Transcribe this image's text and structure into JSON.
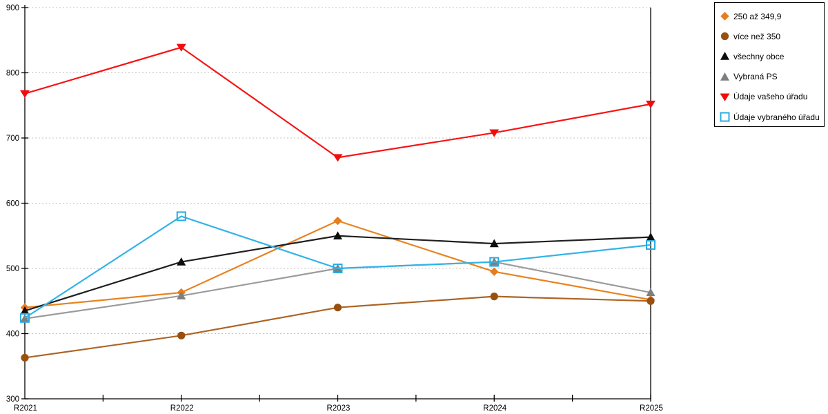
{
  "chart_data": {
    "type": "line",
    "categories": [
      "R2021",
      "R2022",
      "R2023",
      "R2024",
      "R2025"
    ],
    "series": [
      {
        "name": "250 až 349,9",
        "marker": "diamond",
        "color": "#E87D1E",
        "line_color": "#E8821F",
        "values": [
          440,
          463,
          573,
          495,
          452
        ]
      },
      {
        "name": "více než 350",
        "marker": "circle",
        "color": "#99500F",
        "line_color": "#AC6423",
        "values": [
          363,
          397,
          440,
          457,
          450
        ]
      },
      {
        "name": "všechny obce",
        "marker": "triangle-up",
        "color": "#0D0D0D",
        "line_color": "#1F1F1F",
        "values": [
          435,
          510,
          550,
          538,
          548
        ]
      },
      {
        "name": "Vybraná PS",
        "marker": "triangle-up",
        "color": "#7F7F7F",
        "line_color": "#9B9B9B",
        "values": [
          423,
          458,
          500,
          510,
          463
        ]
      },
      {
        "name": "Údaje vašeho úřadu",
        "marker": "triangle-down",
        "color": "#F20D0D",
        "line_color": "#F71414",
        "values": [
          768,
          839,
          670,
          708,
          752
        ]
      },
      {
        "name": "Údaje vybraného úřadu",
        "marker": "square-open",
        "color": "#29ABE2",
        "line_color": "#33B3E8",
        "values": [
          424,
          580,
          500,
          510,
          536
        ]
      }
    ],
    "title": "",
    "xlabel": "",
    "ylabel": "",
    "ylim": [
      300,
      900
    ],
    "ytick_step": 100,
    "y_tick_labels": [
      "300",
      "400",
      "500",
      "600",
      "700",
      "800",
      "900"
    ],
    "grid": "horizontal-dotted",
    "grid_color": "#C3C3C3",
    "axis_color": "#000000",
    "legend_position": "top-right"
  }
}
